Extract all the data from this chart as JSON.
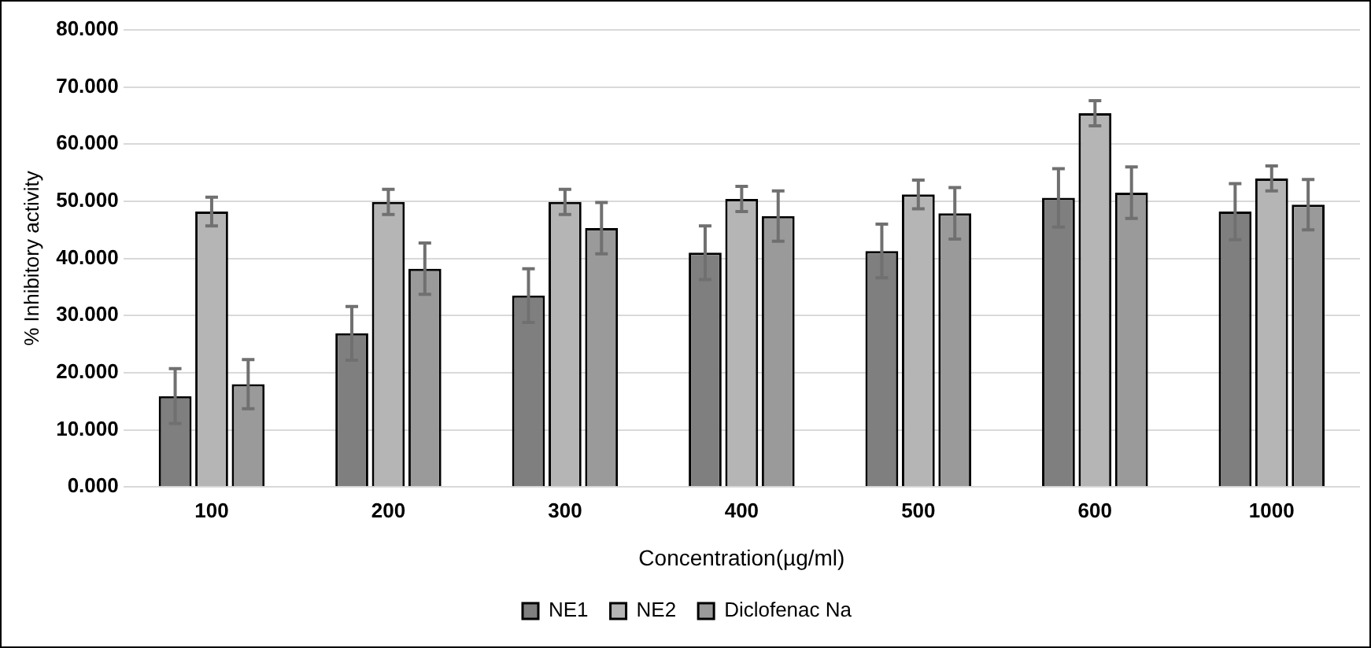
{
  "chart_data": {
    "type": "bar",
    "xlabel": "Concentration(µg/ml)",
    "ylabel": "% Inhibitory activity",
    "categories": [
      "100",
      "200",
      "300",
      "400",
      "500",
      "600",
      "1000"
    ],
    "series": [
      {
        "name": "NE1",
        "color": "#7f7f7f",
        "values": [
          15.9,
          26.9,
          33.5,
          41.0,
          41.3,
          50.6,
          48.2
        ],
        "errors": [
          4.8,
          4.7,
          4.7,
          4.7,
          4.7,
          5.1,
          4.9
        ]
      },
      {
        "name": "NE2",
        "color": "#b5b5b5",
        "values": [
          48.2,
          49.9,
          49.9,
          50.4,
          51.2,
          65.4,
          54.0
        ],
        "errors": [
          2.5,
          2.2,
          2.2,
          2.2,
          2.5,
          2.2,
          2.2
        ]
      },
      {
        "name": "Diclofenac Na",
        "color": "#9a9a9a",
        "values": [
          18.0,
          38.2,
          45.3,
          47.4,
          47.9,
          51.5,
          49.4
        ],
        "errors": [
          4.3,
          4.5,
          4.5,
          4.4,
          4.5,
          4.5,
          4.4
        ]
      }
    ],
    "ylim": [
      0,
      80
    ],
    "yticks": [
      {
        "value": 0,
        "label": "0.000"
      },
      {
        "value": 10,
        "label": "10.000"
      },
      {
        "value": 20,
        "label": "20.000"
      },
      {
        "value": 30,
        "label": "30.000"
      },
      {
        "value": 40,
        "label": "40.000"
      },
      {
        "value": 50,
        "label": "50.000"
      },
      {
        "value": 60,
        "label": "60.000"
      },
      {
        "value": 70,
        "label": "70.000"
      },
      {
        "value": 80,
        "label": "80.000"
      }
    ],
    "grid": "y",
    "legend": "bottom"
  }
}
